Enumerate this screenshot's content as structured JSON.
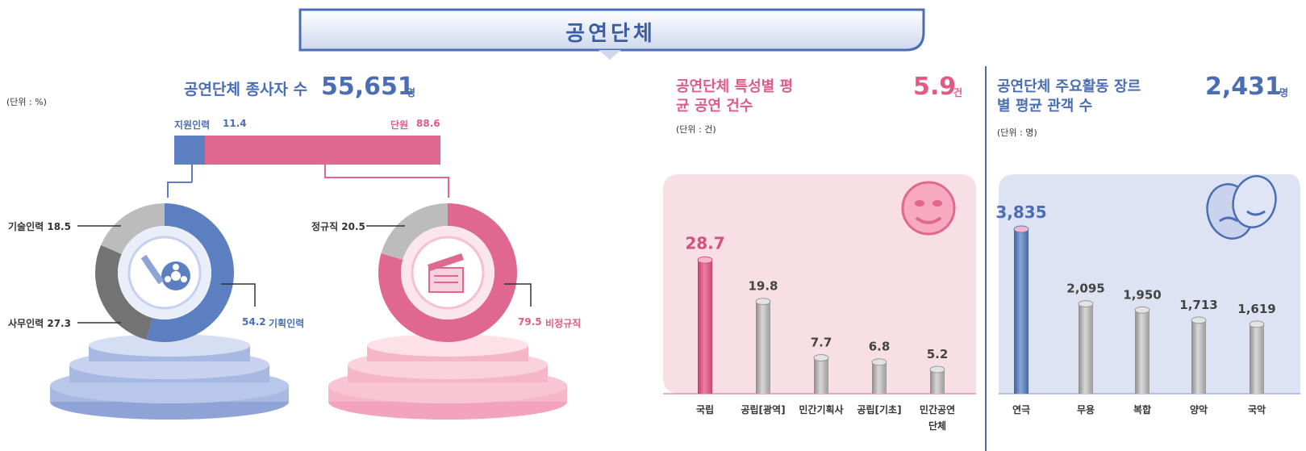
{
  "banner": {
    "title": "공연단체"
  },
  "staff": {
    "title": "공연단체 종사자 수",
    "total": "55,651",
    "total_unit": "명",
    "unit_note": "(단위 : %)",
    "bar": {
      "left_label": "지원인력",
      "left_value": "11.4",
      "right_label": "단원",
      "right_value": "88.6"
    },
    "donut_left": {
      "segments": [
        {
          "label": "기획인력",
          "value": 54.2,
          "color": "#5b7fc0"
        },
        {
          "label": "사무인력",
          "value": 27.3,
          "color": "#737373"
        },
        {
          "label": "기술인력",
          "value": 18.5,
          "color": "#bcbcbc"
        }
      ],
      "labels": {
        "tech": "기술인력  18.5",
        "office": "사무인력  27.3",
        "plan_value": "54.2",
        "plan_label": "기획인력"
      }
    },
    "donut_right": {
      "segments": [
        {
          "label": "비정규직",
          "value": 79.5,
          "color": "#e0678f"
        },
        {
          "label": "정규직",
          "value": 20.5,
          "color": "#bcbcbc"
        }
      ],
      "labels": {
        "regular": "정규직  20.5",
        "irregular_value": "79.5",
        "irregular_label": "비정규직"
      }
    }
  },
  "chart_data": [
    {
      "type": "bar",
      "title": "공연단체 특성별 평균 공연 건수",
      "headline": "5.9",
      "headline_unit": "건",
      "unit_note": "(단위 : 건)",
      "categories": [
        "국립",
        "공립[광역]",
        "민간기획사",
        "공립[기초]",
        "민간공연단체"
      ],
      "values": [
        28.7,
        19.8,
        7.7,
        6.8,
        5.2
      ],
      "ylim": [
        0,
        40
      ],
      "highlight_index": 0,
      "colors": {
        "highlight": "#d94f7c",
        "normal": "#a9a9a9",
        "panel": "#f8dfe6"
      }
    },
    {
      "type": "bar",
      "title": "공연단체 주요활동 장르별 평균 관객 수",
      "headline": "2,431",
      "headline_unit": "명",
      "unit_note": "(단위 : 명)",
      "categories": [
        "연극",
        "무용",
        "복합",
        "양악",
        "국악"
      ],
      "values": [
        3835,
        2095,
        1950,
        1713,
        1619
      ],
      "value_labels": [
        "3,835",
        "2,095",
        "1,950",
        "1,713",
        "1,619"
      ],
      "ylim": [
        0,
        4700
      ],
      "highlight_index": 0,
      "colors": {
        "highlight": "#5b7fc0",
        "normal": "#a9a9a9",
        "panel": "#dde3f2"
      }
    }
  ]
}
